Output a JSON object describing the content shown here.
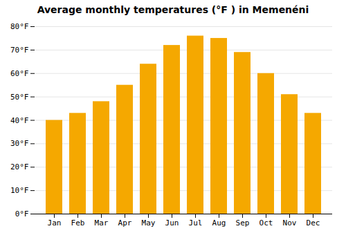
{
  "chart_data": {
    "type": "bar",
    "title": "Average monthly temperatures (°F ) in Memenéni",
    "categories": [
      "Jan",
      "Feb",
      "Mar",
      "Apr",
      "May",
      "Jun",
      "Jul",
      "Aug",
      "Sep",
      "Oct",
      "Nov",
      "Dec"
    ],
    "values": [
      40,
      43,
      48,
      55,
      64,
      72,
      76,
      75,
      69,
      60,
      51,
      43
    ],
    "color": "#F5A800",
    "ylim": [
      0,
      80
    ],
    "yticks": [
      {
        "value": 0,
        "label": "0°F"
      },
      {
        "value": 10,
        "label": "10°F"
      },
      {
        "value": 20,
        "label": "20°F"
      },
      {
        "value": 30,
        "label": "30°F"
      },
      {
        "value": 40,
        "label": "40°F"
      },
      {
        "value": 50,
        "label": "50°F"
      },
      {
        "value": 60,
        "label": "60°F"
      },
      {
        "value": 70,
        "label": "70°F"
      },
      {
        "value": 80,
        "label": "80°F"
      }
    ],
    "grid": true
  }
}
